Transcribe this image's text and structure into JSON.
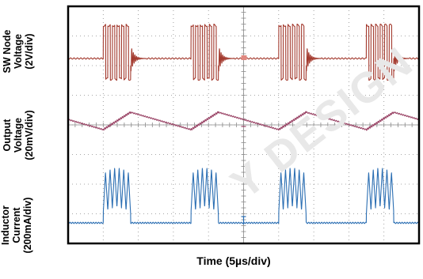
{
  "chart_data": {
    "type": "line",
    "xlabel": "Time (5µs/div)",
    "ylabels": [
      {
        "lines": [
          "SW Node",
          "Voltage",
          "(2V/div)"
        ]
      },
      {
        "lines": [
          "Output",
          "Voltage",
          "(20mV/div)"
        ]
      },
      {
        "lines": [
          "Inductor",
          "Current",
          "(200mA/div)"
        ]
      }
    ],
    "grid": true,
    "divisions": {
      "x": 10,
      "y": 8
    },
    "period_us": 12.5,
    "burst_start_us": [
      5.0,
      17.5,
      30.0,
      42.5
    ],
    "burst_length_us": 3.9,
    "traces": [
      {
        "name": "sw_node",
        "color": "#a33a2e"
      },
      {
        "name": "output_voltage",
        "color": "#9a4466"
      },
      {
        "name": "inductor_current",
        "color": "#2c6fb3"
      }
    ],
    "colors": {
      "frame": "#000000",
      "grid": "#8a8a8a",
      "background": "#ffffff"
    }
  },
  "watermark": "Y DESIGN"
}
